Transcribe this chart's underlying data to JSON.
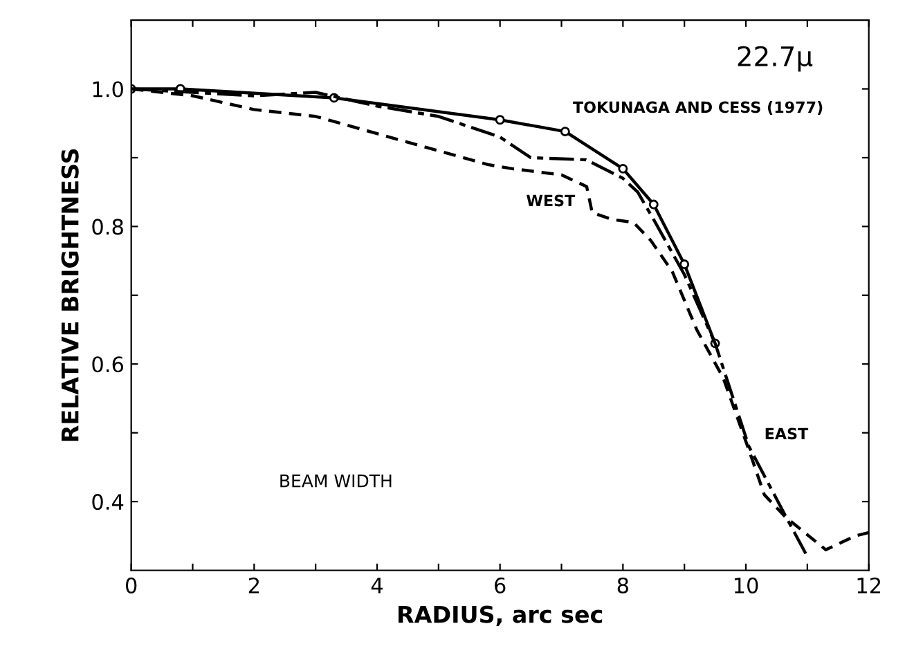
{
  "chart_data": {
    "type": "line",
    "xlabel": "RADIUS, arc sec",
    "ylabel": "RELATIVE BRIGHTNESS",
    "xlim": [
      0,
      12
    ],
    "ylim": [
      0.3,
      1.1
    ],
    "xticks": [
      0,
      {
        "value": 1,
        "label": null
      },
      2,
      {
        "value": 3,
        "label": null
      },
      4,
      {
        "value": 5,
        "label": null
      },
      6,
      {
        "value": 7,
        "label": null
      },
      8,
      {
        "value": 9,
        "label": null
      },
      10,
      {
        "value": 11,
        "label": null
      },
      12
    ],
    "yticks": [
      {
        "value": 0.4,
        "label": "0.4"
      },
      {
        "value": 0.5,
        "label": null
      },
      {
        "value": 0.6,
        "label": "0.6"
      },
      {
        "value": 0.7,
        "label": null
      },
      {
        "value": 0.8,
        "label": "0.8"
      },
      {
        "value": 0.9,
        "label": null
      },
      {
        "value": 1.0,
        "label": "1.0"
      }
    ],
    "grid": false,
    "legend": false,
    "series": [
      {
        "name": "TOKUNAGA AND CESS (1977)",
        "color": "#000000",
        "line_style": "solid",
        "marker": "circle",
        "x": [
          0,
          0.8,
          3.3,
          6,
          7.06,
          8,
          8.5,
          9,
          9.5
        ],
        "values": [
          1.0,
          1.0,
          0.987,
          0.955,
          0.938,
          0.884,
          0.832,
          0.745,
          0.63
        ]
      },
      {
        "name": "WEST",
        "color": "#000000",
        "line_style": "dashed",
        "marker": "none",
        "x": [
          0,
          1,
          2,
          3,
          4,
          5,
          5.8,
          6.2,
          7,
          7.41,
          7.5,
          7.83,
          8.17,
          8.45,
          8.8,
          9.2,
          9.63,
          10.05,
          10.3,
          10.64,
          11.3,
          11.78,
          12
        ],
        "values": [
          1.0,
          0.99,
          0.97,
          0.96,
          0.935,
          0.91,
          0.89,
          0.884,
          0.875,
          0.858,
          0.82,
          0.81,
          0.806,
          0.78,
          0.735,
          0.65,
          0.58,
          0.475,
          0.41,
          0.378,
          0.33,
          0.35,
          0.355
        ]
      },
      {
        "name": "EAST",
        "color": "#000000",
        "line_style": "dashdot",
        "marker": "none",
        "x": [
          0,
          1,
          2,
          3,
          4,
          5,
          6,
          6.5,
          7.4,
          8,
          8.24,
          8.5,
          9,
          9.5,
          10.05,
          10.64,
          11.0
        ],
        "values": [
          1.0,
          0.995,
          0.99,
          0.995,
          0.975,
          0.96,
          0.93,
          0.9,
          0.897,
          0.87,
          0.85,
          0.81,
          0.73,
          0.63,
          0.48,
          0.38,
          0.32
        ]
      }
    ],
    "annotations": [
      "22.7μ",
      "BEAM WIDTH"
    ]
  }
}
